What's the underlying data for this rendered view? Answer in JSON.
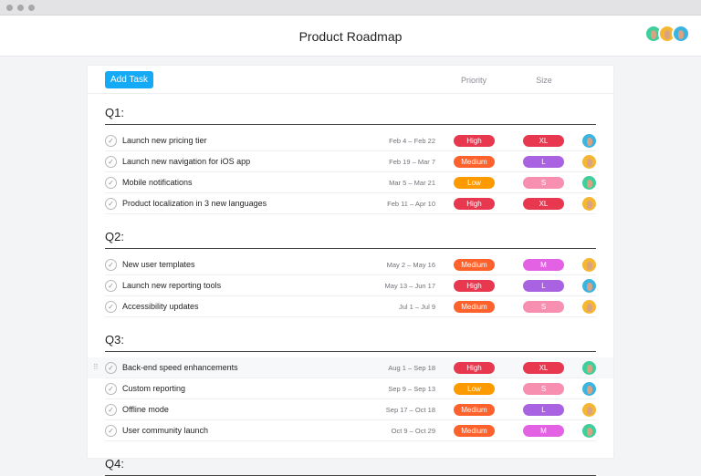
{
  "window": {
    "title": "Product Roadmap"
  },
  "header": {
    "avatars": [
      {
        "color": "#3ecf9a"
      },
      {
        "color": "#f5b731"
      },
      {
        "color": "#3bb5e0"
      }
    ]
  },
  "toolbar": {
    "add_task_label": "Add Task",
    "columns": {
      "priority": "Priority",
      "size": "Size"
    }
  },
  "colors": {
    "High": "#e8384f",
    "Medium": "#fd612c",
    "Low": "#fd9a00",
    "XL": "#e8384f",
    "L": "#a962e0",
    "S": "#f78fb0",
    "M": "#e362e3",
    "blue": "#3bb5e0",
    "yellow": "#f5b731",
    "green": "#3ecf9a",
    "accent": "#14aaf5"
  },
  "sections": [
    {
      "title": "Q1:",
      "tasks": [
        {
          "name": "Launch new pricing tier",
          "dates": "Feb 4 – Feb 22",
          "priority": "High",
          "size": "XL",
          "assignee": "blue"
        },
        {
          "name": "Launch new navigation for iOS app",
          "dates": "Feb 19 – Mar 7",
          "priority": "Medium",
          "size": "L",
          "assignee": "yellow"
        },
        {
          "name": "Mobile notifications",
          "dates": "Mar 5 – Mar 21",
          "priority": "Low",
          "size": "S",
          "assignee": "green"
        },
        {
          "name": "Product localization in 3 new languages",
          "dates": "Feb 11 – Apr 10",
          "priority": "High",
          "size": "XL",
          "assignee": "yellow"
        }
      ]
    },
    {
      "title": "Q2:",
      "tasks": [
        {
          "name": "New user templates",
          "dates": "May 2 – May 16",
          "priority": "Medium",
          "size": "M",
          "assignee": "yellow"
        },
        {
          "name": "Launch new reporting tools",
          "dates": "May 13 – Jun 17",
          "priority": "High",
          "size": "L",
          "assignee": "blue"
        },
        {
          "name": "Accessibility updates",
          "dates": "Jul 1 – Jul 9",
          "priority": "Medium",
          "size": "S",
          "assignee": "yellow"
        }
      ]
    },
    {
      "title": "Q3:",
      "tasks": [
        {
          "name": "Back-end speed enhancements",
          "dates": "Aug 1 – Sep 18",
          "priority": "High",
          "size": "XL",
          "assignee": "green",
          "hovered": true
        },
        {
          "name": "Custom reporting",
          "dates": "Sep 9 – Sep 13",
          "priority": "Low",
          "size": "S",
          "assignee": "blue"
        },
        {
          "name": "Offline mode",
          "dates": "Sep 17 – Oct 18",
          "priority": "Medium",
          "size": "L",
          "assignee": "yellow"
        },
        {
          "name": "User community launch",
          "dates": "Oct 9 – Oct 29",
          "priority": "Medium",
          "size": "M",
          "assignee": "green"
        }
      ]
    },
    {
      "title": "Q4:",
      "tasks": []
    }
  ]
}
